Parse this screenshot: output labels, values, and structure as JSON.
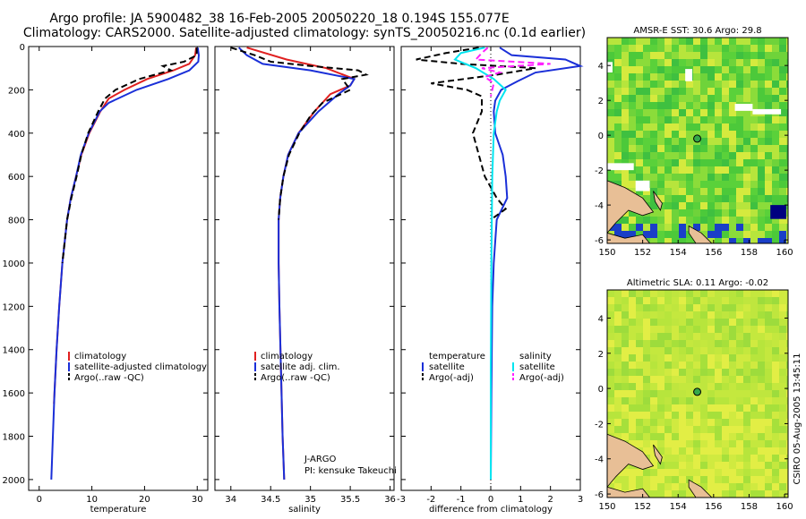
{
  "title": {
    "line1": "Argo profile: JA 5900482_38 16-Feb-2005 20050220_18 0.194S 155.077E",
    "line2": "Climatology: CARS2000. Satellite-adjusted climatology: synTS_20050216.nc (0.1d earlier)"
  },
  "colors": {
    "climatology": "#e02020",
    "satellite": "#1a2fd8",
    "argo": "#000000",
    "sal_satellite": "#00e5f0",
    "sal_argo": "#ff20ff"
  },
  "chart_data": [
    {
      "type": "line",
      "panel": "temperature",
      "xlabel": "temperature",
      "ylabel": "",
      "xlim": [
        -2,
        32
      ],
      "ylim": [
        2050,
        0
      ],
      "xticks": [
        "0",
        "10",
        "20",
        "30"
      ],
      "yticks": [
        "0",
        "200",
        "400",
        "600",
        "800",
        "1000",
        "1200",
        "1400",
        "1600",
        "1800",
        "2000"
      ],
      "legend": [
        "climatology",
        "satellite-adjusted climatology",
        "Argo(..raw -QC)"
      ],
      "series": [
        {
          "name": "climatology",
          "style": "solid",
          "color": "#e02020",
          "depth": [
            5,
            40,
            80,
            110,
            150,
            200,
            240,
            300,
            400,
            500,
            600,
            700,
            800,
            1000,
            1200,
            1400,
            1600,
            1650
          ],
          "values": [
            29.8,
            29.6,
            28.5,
            25.5,
            20.5,
            16.2,
            13.2,
            11.6,
            9.5,
            8.0,
            7.0,
            6.0,
            5.3,
            4.4,
            3.8,
            3.3,
            2.9,
            2.8
          ]
        },
        {
          "name": "satellite-adjusted climatology",
          "style": "solid",
          "color": "#1a2fd8",
          "depth": [
            5,
            40,
            70,
            110,
            150,
            200,
            260,
            300,
            400,
            500,
            600,
            700,
            800,
            1000,
            1200,
            1400,
            1600,
            1800,
            2000
          ],
          "values": [
            30.1,
            30.3,
            30.2,
            28.5,
            24.5,
            18.5,
            13.2,
            11.5,
            9.4,
            7.9,
            7.0,
            6.0,
            5.3,
            4.4,
            3.8,
            3.3,
            2.9,
            2.6,
            2.3
          ]
        },
        {
          "name": "Argo(..raw -QC)",
          "style": "dashed",
          "color": "#000000",
          "depth": [
            5,
            40,
            70,
            90,
            110,
            150,
            200,
            240,
            300,
            400,
            500,
            600,
            700,
            800,
            1000
          ],
          "values": [
            29.9,
            29.9,
            27.5,
            23.5,
            25.0,
            19.0,
            14.5,
            12.5,
            11.2,
            9.3,
            8.0,
            7.1,
            6.1,
            5.3,
            4.4
          ]
        }
      ]
    },
    {
      "type": "line",
      "panel": "salinity",
      "xlabel": "salinity",
      "xlim": [
        33.8,
        36.05
      ],
      "ylim": [
        2050,
        0
      ],
      "xticks": [
        "34",
        "34.5",
        "35",
        "35.5",
        "36"
      ],
      "legend": [
        "climatology",
        "satellite adj. clim.",
        "Argo(..raw -QC)"
      ],
      "series": [
        {
          "name": "climatology",
          "style": "solid",
          "color": "#e02020",
          "depth": [
            5,
            60,
            100,
            150,
            180,
            220,
            300,
            400,
            500,
            600,
            700,
            800,
            1000,
            1200,
            1500,
            1800,
            2000
          ],
          "values": [
            34.2,
            34.7,
            35.2,
            35.55,
            35.5,
            35.25,
            35.05,
            34.85,
            34.72,
            34.66,
            34.62,
            34.6,
            34.6,
            34.61,
            34.63,
            34.65,
            34.67
          ]
        },
        {
          "name": "satellite adj. clim.",
          "style": "solid",
          "color": "#1a2fd8",
          "depth": [
            5,
            40,
            80,
            110,
            150,
            180,
            220,
            300,
            400,
            500,
            600,
            700,
            800,
            1000,
            1200,
            1500,
            1800,
            2000
          ],
          "values": [
            34.1,
            34.2,
            34.4,
            35.0,
            35.55,
            35.5,
            35.35,
            35.1,
            34.85,
            34.72,
            34.66,
            34.62,
            34.6,
            34.6,
            34.61,
            34.63,
            34.65,
            34.67
          ]
        },
        {
          "name": "Argo(..raw -QC)",
          "style": "dashed",
          "color": "#000000",
          "depth": [
            5,
            40,
            70,
            90,
            110,
            130,
            150,
            200,
            260,
            320,
            400,
            500,
            600,
            700,
            800
          ],
          "values": [
            34.0,
            34.3,
            34.5,
            35.0,
            35.6,
            35.7,
            35.4,
            35.5,
            35.15,
            35.0,
            34.86,
            34.73,
            34.66,
            34.62,
            34.6
          ]
        }
      ]
    },
    {
      "type": "line",
      "panel": "difference",
      "xlabel": "difference from climatology",
      "xlim": [
        -3,
        3
      ],
      "ylim": [
        2050,
        0
      ],
      "xticks": [
        "-3",
        "-2",
        "-1",
        "0",
        "1",
        "2",
        "3"
      ],
      "legend_left": {
        "header": "temperature",
        "items": [
          "satellite",
          "Argo(-adj)"
        ]
      },
      "legend_right": {
        "header": "salinity",
        "items": [
          "satellite",
          "Argo(-adj)"
        ]
      },
      "series": [
        {
          "name": "temperature satellite",
          "style": "solid",
          "color": "#1a2fd8",
          "depth": [
            5,
            40,
            60,
            90,
            120,
            160,
            200,
            250,
            300,
            400,
            500,
            600,
            700,
            800,
            1000,
            1200,
            1600,
            2000
          ],
          "values": [
            0.3,
            0.7,
            2.5,
            3.0,
            1.5,
            0.9,
            0.35,
            0.15,
            0.1,
            0.15,
            0.4,
            0.5,
            0.55,
            0.2,
            0.1,
            0.05,
            0.02,
            0.0
          ]
        },
        {
          "name": "temperature Argo(-adj)",
          "style": "dashed",
          "color": "#000000",
          "depth": [
            5,
            30,
            60,
            80,
            100,
            130,
            170,
            200,
            230,
            300,
            400,
            500,
            600,
            700,
            750,
            800
          ],
          "values": [
            -0.4,
            -1.5,
            -2.5,
            -1.0,
            1.5,
            0.2,
            -2.0,
            -0.8,
            -0.3,
            -0.3,
            -0.6,
            -0.4,
            -0.2,
            0.2,
            0.5,
            0.0
          ]
        },
        {
          "name": "salinity satellite",
          "style": "solid",
          "color": "#00e5f0",
          "depth": [
            5,
            30,
            60,
            100,
            150,
            200,
            250,
            300,
            400,
            600,
            1000,
            1500,
            2000
          ],
          "values": [
            -0.2,
            -1.0,
            -1.2,
            -0.5,
            0.1,
            0.5,
            0.3,
            0.2,
            0.1,
            0.05,
            0.02,
            0.0,
            0.0
          ]
        },
        {
          "name": "salinity Argo(-adj)",
          "style": "dashed",
          "color": "#ff20ff",
          "depth": [
            5,
            30,
            60,
            80,
            100,
            120,
            140,
            170,
            200,
            230
          ],
          "values": [
            -0.1,
            -0.3,
            -0.5,
            2.0,
            -0.3,
            0.3,
            -0.2,
            0.1,
            0.05,
            0.0
          ]
        }
      ]
    }
  ],
  "maps": [
    {
      "title": "AMSR-E SST: 30.6 Argo: 29.8",
      "xticks": [
        "150",
        "152",
        "154",
        "156",
        "158",
        "160"
      ],
      "yticks": [
        "4",
        "2",
        "0",
        "-2",
        "-4",
        "-6"
      ],
      "marker_lon": 155.077,
      "marker_lat": -0.194
    },
    {
      "title": "Altimetric SLA: 0.11 Argo: -0.02",
      "xticks": [
        "150",
        "152",
        "154",
        "156",
        "158",
        "160"
      ],
      "yticks": [
        "4",
        "2",
        "0",
        "-2",
        "-4",
        "-6"
      ],
      "marker_lon": 155.077,
      "marker_lat": -0.194
    }
  ],
  "footer": {
    "pi_line1": "J-ARGO",
    "pi_line2": "PI: kensuke Takeuchi",
    "stamp": "CSIRO 05-Aug-2005 13:45:11"
  }
}
